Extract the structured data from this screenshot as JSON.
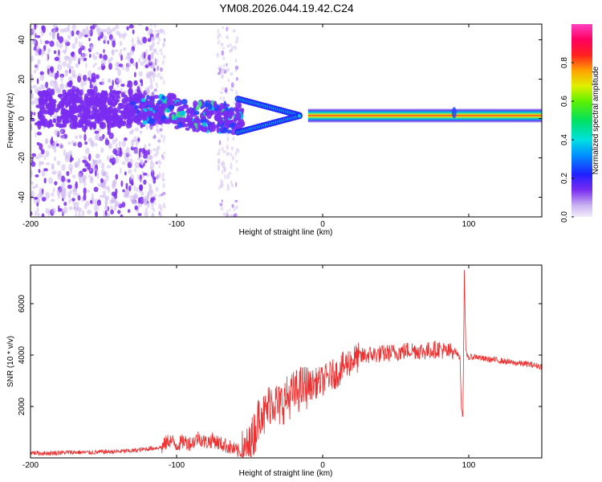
{
  "title": "YM08.2026.044.19.42.C24",
  "chart_data": [
    {
      "type": "heatmap",
      "name": "spectrogram",
      "xlabel": "Height of straight line (km)",
      "ylabel": "Frequency (Hz)",
      "xlim": [
        -200,
        150
      ],
      "ylim": [
        -50,
        48
      ],
      "xticks": [
        -200,
        -100,
        0,
        100
      ],
      "yticks": [
        -40,
        -20,
        0,
        20,
        40
      ],
      "grid": false,
      "colorbar": {
        "label": "Normalized spectral amplitude",
        "range": [
          0,
          1
        ],
        "ticks": [
          0.0,
          0.2,
          0.4,
          0.6,
          0.8
        ],
        "tick_labels": [
          "0.0",
          "0.2",
          "0.4",
          "0.6",
          "0.8"
        ],
        "colormap": "rainbow (white-purple-blue-cyan-green-yellow-red-magenta)"
      }
    },
    {
      "type": "line",
      "name": "snr",
      "xlabel": "Height of straight line (km)",
      "ylabel": "SNR (10 * v/v)",
      "xlim": [
        -200,
        150
      ],
      "ylim": [
        0,
        7500
      ],
      "xticks": [
        -200,
        -100,
        0,
        100
      ],
      "yticks": [
        2000,
        4000,
        6000
      ],
      "color": "#ee3030",
      "series": [
        {
          "name": "SNR",
          "x": [
            -200,
            -190,
            -180,
            -170,
            -160,
            -150,
            -140,
            -130,
            -120,
            -110,
            -105,
            -100,
            -95,
            -90,
            -85,
            -80,
            -75,
            -70,
            -65,
            -60,
            -55,
            -50,
            -48,
            -45,
            -42,
            -40,
            -35,
            -30,
            -25,
            -20,
            -15,
            -10,
            -5,
            0,
            5,
            10,
            15,
            20,
            25,
            30,
            40,
            50,
            60,
            70,
            80,
            85,
            90,
            94,
            95,
            96,
            97,
            98,
            100,
            105,
            110,
            120,
            130,
            140,
            150
          ],
          "values": [
            200,
            180,
            200,
            220,
            210,
            230,
            250,
            280,
            350,
            420,
            700,
            500,
            650,
            550,
            800,
            600,
            700,
            550,
            450,
            300,
            200,
            400,
            800,
            1300,
            2000,
            1600,
            2300,
            2000,
            2300,
            2500,
            2700,
            2800,
            2900,
            3000,
            3200,
            3300,
            3600,
            3800,
            3900,
            4000,
            4050,
            4100,
            4200,
            4150,
            4250,
            4100,
            4200,
            3900,
            2000,
            1600,
            7200,
            4100,
            3900,
            3950,
            3850,
            3800,
            3700,
            3650,
            3550
          ]
        }
      ]
    }
  ]
}
